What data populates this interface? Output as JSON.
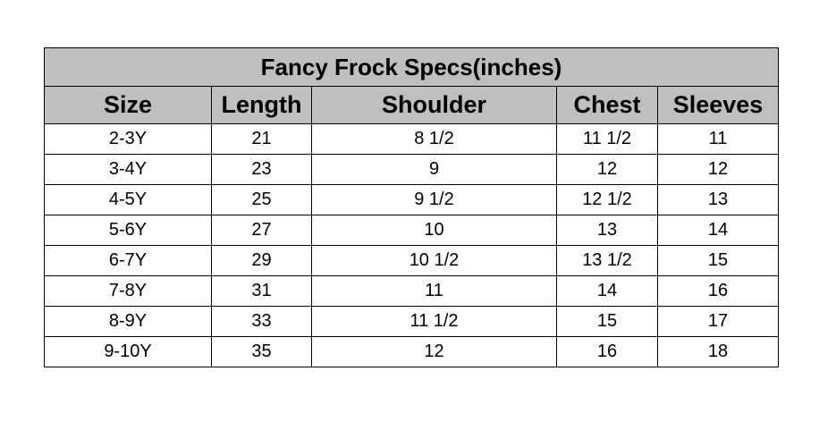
{
  "title": "Fancy Frock Specs(inches)",
  "columns": [
    "Size",
    "Length",
    "Shoulder",
    "Chest",
    "Sleeves"
  ],
  "rows": [
    [
      "2-3Y",
      "21",
      "8 1/2",
      "11 1/2",
      "11"
    ],
    [
      "3-4Y",
      "23",
      "9",
      "12",
      "12"
    ],
    [
      "4-5Y",
      "25",
      "9 1/2",
      "12 1/2",
      "13"
    ],
    [
      "5-6Y",
      "27",
      "10",
      "13",
      "14"
    ],
    [
      "6-7Y",
      "29",
      "10 1/2",
      "13 1/2",
      "15"
    ],
    [
      "7-8Y",
      "31",
      "11",
      "14",
      "16"
    ],
    [
      "8-9Y",
      "33",
      "11 1/2",
      "15",
      "17"
    ],
    [
      "9-10Y",
      "35",
      "12",
      "16",
      "18"
    ]
  ],
  "colors": {
    "header_bg": "#bfbfbf",
    "border": "#000000"
  }
}
